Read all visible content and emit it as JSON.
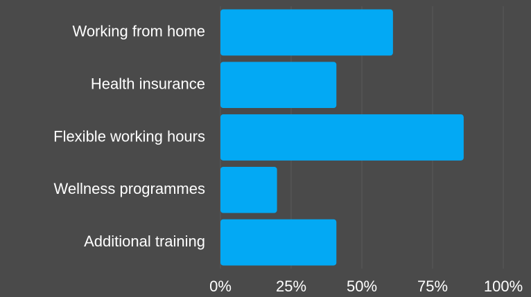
{
  "chart_data": {
    "type": "bar",
    "categories": [
      "Working from home",
      "Health insurance",
      "Flexible working hours",
      "Wellness programmes",
      "Additional training"
    ],
    "values": [
      61,
      41,
      86,
      20,
      41
    ],
    "color": "#03a9f4",
    "xlim": [
      0,
      100
    ],
    "xticks": [
      {
        "value": 0,
        "label": "0%"
      },
      {
        "value": 25,
        "label": "25%"
      },
      {
        "value": 50,
        "label": "50%"
      },
      {
        "value": 75,
        "label": "75%"
      },
      {
        "value": 100,
        "label": "100%"
      }
    ],
    "grid": true
  }
}
